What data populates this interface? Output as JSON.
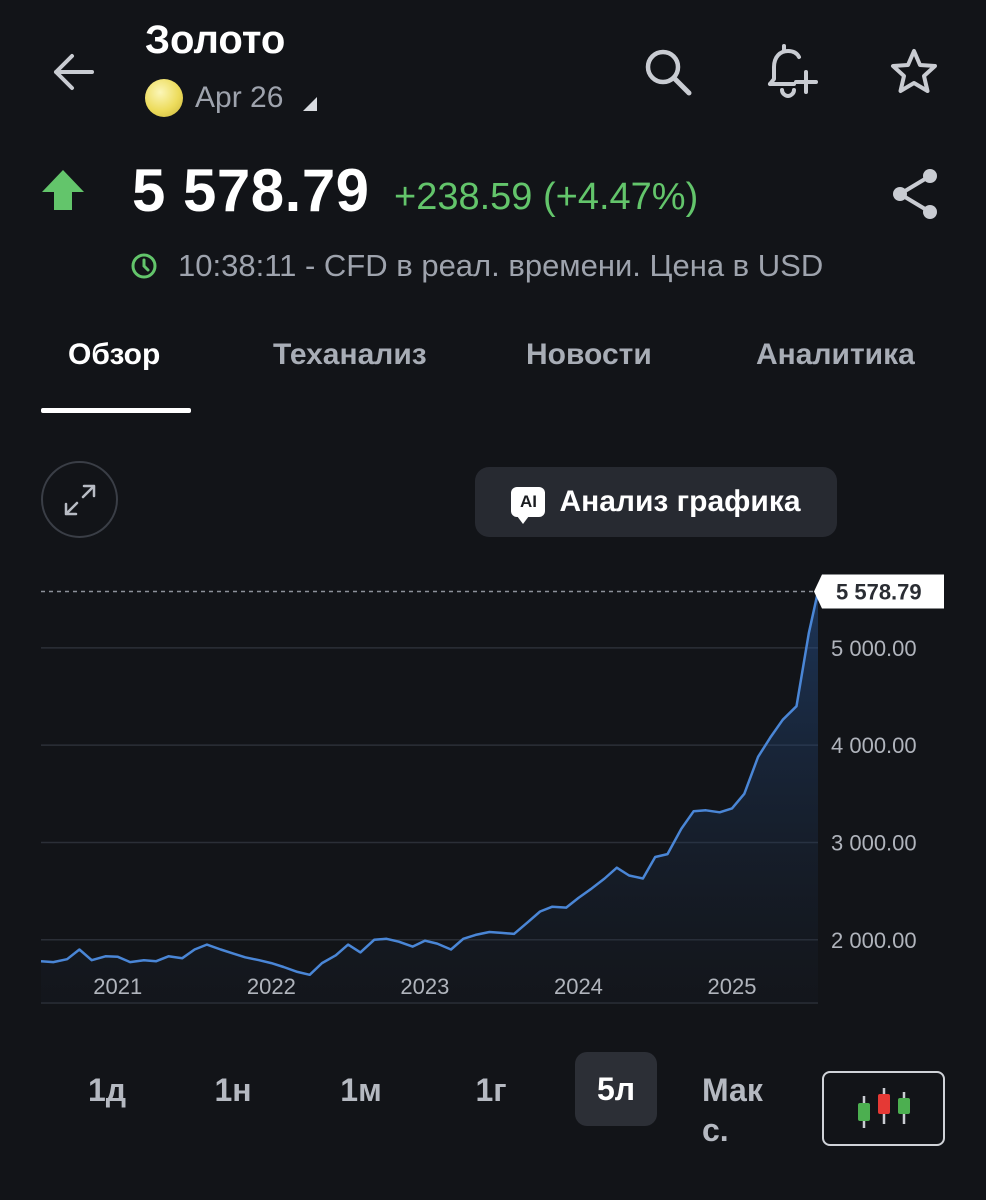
{
  "header": {
    "back_icon": "arrow-left-icon",
    "title": "Золото",
    "subtitle": "Apr 26",
    "actions": [
      "search-icon",
      "bell-plus-icon",
      "star-icon"
    ]
  },
  "quote": {
    "price": "5 578.79",
    "change": "+238.59 (+4.47%)",
    "direction": "up",
    "time_note": "10:38:11 - CFD в реал. времени. Цена в USD",
    "up_color": "#63c56b"
  },
  "tabs": [
    {
      "label": "Обзор",
      "active": true
    },
    {
      "label": "Теханализ",
      "active": false
    },
    {
      "label": "Новости",
      "active": false
    },
    {
      "label": "Аналитика",
      "active": false
    }
  ],
  "chart_controls": {
    "ai_badge": "AI",
    "ai_label": "Анализ графика"
  },
  "chart_data": {
    "type": "area",
    "ylim": [
      1350,
      5800
    ],
    "y_ticks": [
      2000,
      3000,
      4000,
      5000
    ],
    "y_tick_labels": [
      "2 000.00",
      "3 000.00",
      "4 000.00",
      "5 000.00"
    ],
    "x_tick_labels": [
      "2021",
      "2022",
      "2023",
      "2024",
      "2025"
    ],
    "x_tick_values": [
      2021.0,
      2022.0,
      2023.0,
      2024.0,
      2025.0
    ],
    "xlim": [
      2020.5,
      2025.56
    ],
    "last_price_label": "5 578.79",
    "last_price_value": 5578.79,
    "line_color": "#4a86d6",
    "grid": true,
    "series": [
      {
        "x": [
          2020.5,
          2020.58,
          2020.67,
          2020.75,
          2020.83,
          2020.92,
          2021.0,
          2021.08,
          2021.17,
          2021.25,
          2021.33,
          2021.42,
          2021.5,
          2021.58,
          2021.67,
          2021.75,
          2021.83,
          2021.92,
          2022.0,
          2022.08,
          2022.17,
          2022.25,
          2022.33,
          2022.42,
          2022.5,
          2022.58,
          2022.67,
          2022.75,
          2022.83,
          2022.92,
          2023.0,
          2023.08,
          2023.17,
          2023.25,
          2023.33,
          2023.42,
          2023.5,
          2023.58,
          2023.67,
          2023.75,
          2023.83,
          2023.92,
          2024.0,
          2024.08,
          2024.17,
          2024.25,
          2024.33,
          2024.42,
          2024.5,
          2024.58,
          2024.67,
          2024.75,
          2024.83,
          2024.92,
          2025.0,
          2025.08,
          2025.17,
          2025.25,
          2025.33,
          2025.42,
          2025.5,
          2025.56
        ],
        "y": [
          1780,
          1770,
          1800,
          1900,
          1790,
          1830,
          1825,
          1770,
          1790,
          1780,
          1830,
          1810,
          1900,
          1950,
          1900,
          1860,
          1820,
          1790,
          1760,
          1720,
          1670,
          1640,
          1760,
          1840,
          1950,
          1870,
          2000,
          2010,
          1980,
          1930,
          1990,
          1960,
          1900,
          2010,
          2050,
          2080,
          2070,
          2060,
          2180,
          2290,
          2340,
          2330,
          2430,
          2520,
          2630,
          2740,
          2660,
          2630,
          2850,
          2880,
          3140,
          3320,
          3330,
          3310,
          3350,
          3500,
          3880,
          4080,
          4260,
          4400,
          5150,
          5578.79
        ]
      }
    ]
  },
  "ranges": [
    {
      "label": "1д",
      "active": false
    },
    {
      "label": "1н",
      "active": false
    },
    {
      "label": "1м",
      "active": false
    },
    {
      "label": "1г",
      "active": false
    },
    {
      "label": "5л",
      "active": true
    }
  ],
  "range_max_label": "Мак с.",
  "chart_type_icon": "candlestick-icon"
}
